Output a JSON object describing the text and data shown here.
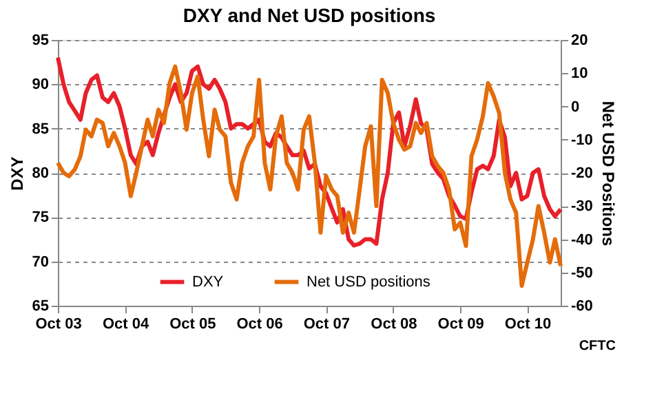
{
  "chart_data": {
    "type": "line",
    "title": "DXY and Net USD positions",
    "ylabel": "DXY",
    "y2label": "Net USD Positions",
    "x": [
      "2003-10",
      "2003-11",
      "2003-12",
      "2004-01",
      "2004-02",
      "2004-03",
      "2004-04",
      "2004-05",
      "2004-06",
      "2004-07",
      "2004-08",
      "2004-09",
      "2004-10",
      "2004-11",
      "2004-12",
      "2005-01",
      "2005-02",
      "2005-03",
      "2005-04",
      "2005-05",
      "2005-06",
      "2005-07",
      "2005-08",
      "2005-09",
      "2005-10",
      "2005-11",
      "2005-12",
      "2006-01",
      "2006-02",
      "2006-03",
      "2006-04",
      "2006-05",
      "2006-06",
      "2006-07",
      "2006-08",
      "2006-09",
      "2006-10",
      "2006-11",
      "2006-12",
      "2007-01",
      "2007-02",
      "2007-03",
      "2007-04",
      "2007-05",
      "2007-06",
      "2007-07",
      "2007-08",
      "2007-09",
      "2007-10",
      "2007-11",
      "2007-12",
      "2008-01",
      "2008-02",
      "2008-03",
      "2008-04",
      "2008-05",
      "2008-06",
      "2008-07",
      "2008-08",
      "2008-09",
      "2008-10",
      "2008-11",
      "2008-12",
      "2009-01",
      "2009-02",
      "2009-03",
      "2009-04",
      "2009-05",
      "2009-06",
      "2009-07",
      "2009-08",
      "2009-09",
      "2009-10",
      "2009-11",
      "2009-12",
      "2010-01",
      "2010-02",
      "2010-03",
      "2010-04",
      "2010-05",
      "2010-06",
      "2010-07",
      "2010-08",
      "2010-09",
      "2010-10",
      "2010-11",
      "2010-12",
      "2011-01",
      "2011-02",
      "2011-03",
      "2011-04"
    ],
    "series": [
      {
        "name": "DXY",
        "color": "#e8202a",
        "values": [
          93,
          90,
          88,
          87,
          86,
          89,
          90.5,
          91,
          88.5,
          88,
          89,
          87.5,
          85,
          82,
          81,
          83,
          83.5,
          82,
          84.5,
          86.5,
          88.5,
          90,
          88,
          89,
          91.5,
          92,
          90,
          89.5,
          90.5,
          89.5,
          88,
          85,
          85.5,
          85.5,
          85,
          85.5,
          86,
          83.5,
          83,
          84.5,
          84,
          83,
          82,
          82,
          82.5,
          80.5,
          81,
          78.5,
          77.7,
          76,
          74.4,
          75.9,
          72.5,
          71.8,
          72,
          72.5,
          72.5,
          72,
          77,
          80,
          85.6,
          86.8,
          83,
          85.3,
          88.3,
          85.6,
          84.9,
          81,
          80,
          79.3,
          77.4,
          76.3,
          75.1,
          74.8,
          77.8,
          80.4,
          80.8,
          80.4,
          81.9,
          86,
          84,
          78.5,
          80,
          77,
          77.4,
          80,
          80.4,
          77.4,
          75.9,
          75.1,
          75.9
        ]
      },
      {
        "name": "Net USD positions",
        "color": "#e46c0a",
        "axis": "y2",
        "values": [
          -17,
          -20,
          -21,
          -19,
          -15,
          -7,
          -9,
          -4,
          -5,
          -12,
          -8,
          -12,
          -17,
          -27,
          -20,
          -12,
          -4,
          -9,
          -1,
          -5,
          7,
          12,
          4,
          -7,
          4,
          9,
          -4,
          -15,
          -1,
          -7,
          -9,
          -23,
          -28,
          -17,
          -12,
          -9,
          8,
          -17,
          -25,
          -9,
          -3,
          -17,
          -20,
          -25,
          -7,
          -3,
          -17,
          -38,
          -21,
          -25,
          -27,
          -38,
          -32,
          -38,
          -25,
          -12,
          -6,
          -30,
          8,
          4,
          -5,
          -10,
          -13,
          -12,
          -5,
          -8,
          -5,
          -15,
          -18,
          -20,
          -25,
          -37,
          -35,
          -42,
          -15,
          -10,
          -3,
          7,
          3,
          -2,
          -20,
          -28,
          -32,
          -54,
          -47,
          -40,
          -30,
          -38,
          -47,
          -40,
          -48
        ]
      }
    ],
    "xlim": [
      "2003-10",
      "2011-04"
    ],
    "xticks": [
      {
        "value": "2003-10",
        "label": "Oct 03"
      },
      {
        "value": "2004-10",
        "label": "Oct 04"
      },
      {
        "value": "2005-10",
        "label": "Oct 05"
      },
      {
        "value": "2006-10",
        "label": "Oct 06"
      },
      {
        "value": "2007-10",
        "label": "Oct 07"
      },
      {
        "value": "2008-10",
        "label": "Oct 08"
      },
      {
        "value": "2009-10",
        "label": "Oct 09"
      },
      {
        "value": "2010-10",
        "label": "Oct 10"
      }
    ],
    "ylim": [
      65,
      95
    ],
    "yticks": [
      65,
      70,
      75,
      80,
      85,
      90,
      95
    ],
    "y2lim": [
      -60,
      20
    ],
    "y2ticks": [
      -60,
      -50,
      -40,
      -30,
      -20,
      -10,
      0,
      10,
      20
    ],
    "grid": "y",
    "legend": "bottom",
    "line_style": "solid",
    "marker": "none",
    "annotations": [
      "CFTC"
    ]
  }
}
